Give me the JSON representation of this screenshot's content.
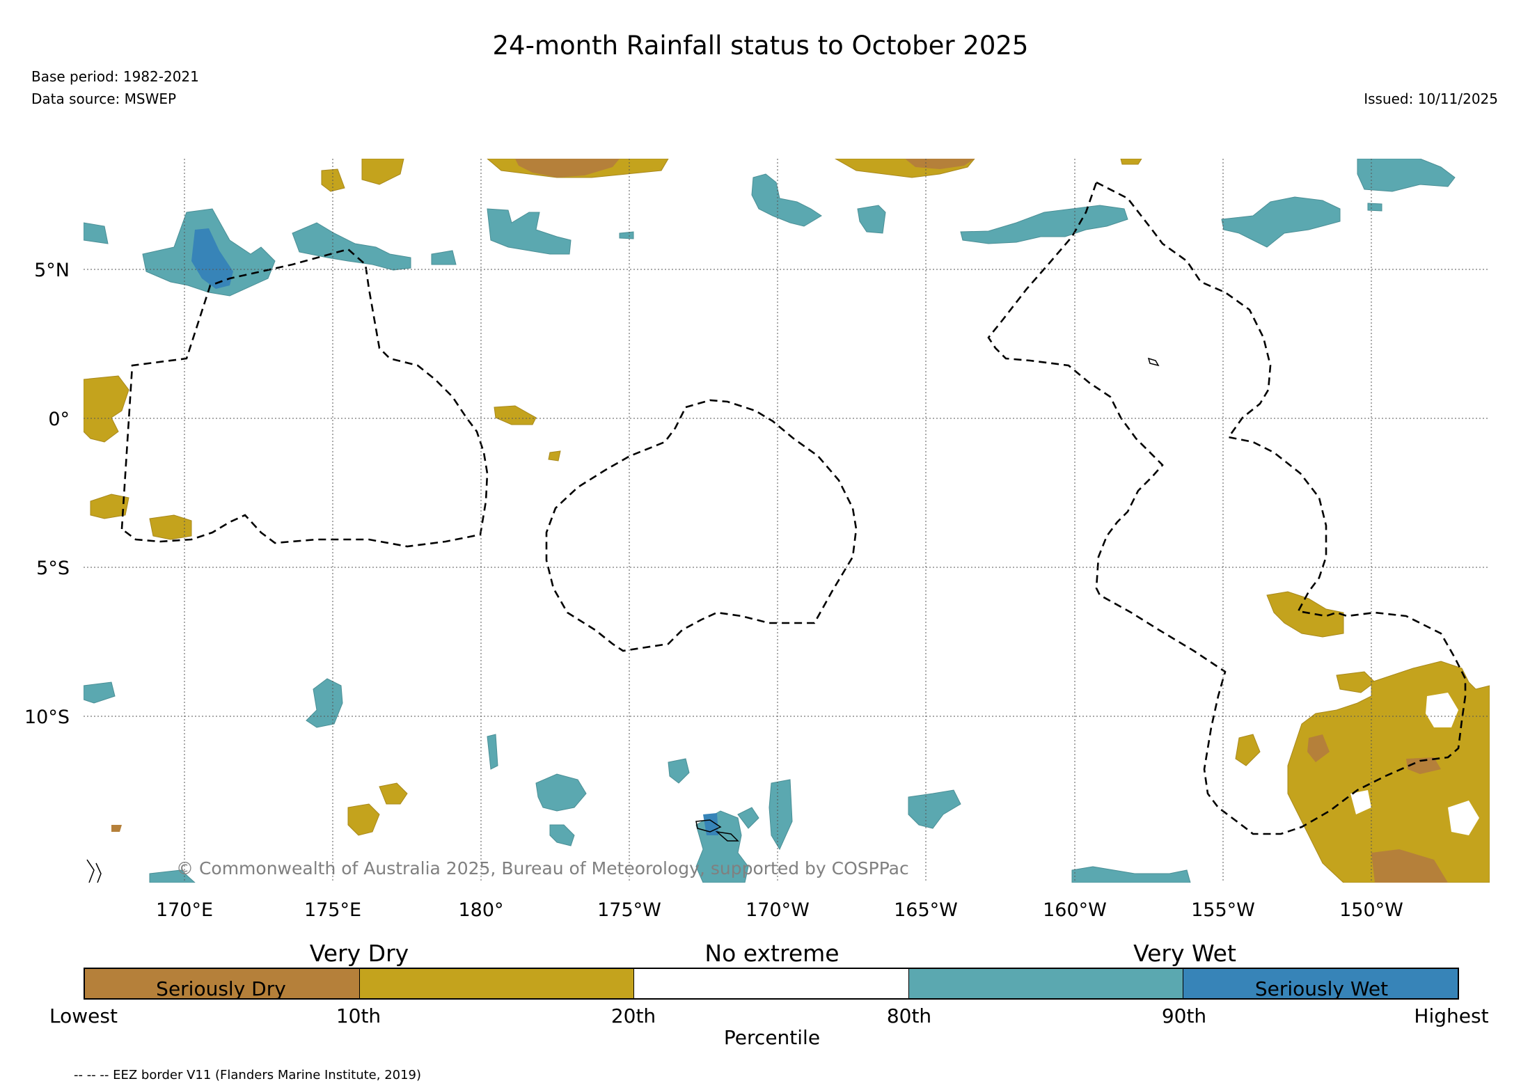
{
  "title": "24-month Rainfall status to October 2025",
  "base_period": "Base period: 1982-2021",
  "data_source": "Data source: MSWEP",
  "issued": "Issued: 10/11/2025",
  "copyright": "© Commonwealth of Australia 2025, Bureau of Meteorology, supported by COSPPac",
  "map": {
    "lon_ticks": [
      "170°E",
      "175°E",
      "180°",
      "175°W",
      "170°W",
      "165°W",
      "160°W",
      "155°W",
      "150°W"
    ],
    "lat_ticks": [
      "5°N",
      "0°",
      "5°S",
      "10°S"
    ],
    "grid": "on",
    "colors": {
      "seriously_dry": "#b5803a",
      "very_dry": "#c4a31d",
      "no_extreme": "#ffffff",
      "very_wet": "#5ba8b0",
      "seriously_wet": "#3784b8"
    }
  },
  "legend": {
    "group_labels": [
      "Very Dry",
      "No extreme",
      "Very Wet"
    ],
    "inner_labels": [
      "Seriously Dry",
      "Seriously Wet"
    ],
    "ticks": [
      "Lowest",
      "10th",
      "20th",
      "80th",
      "90th",
      "Highest"
    ],
    "axis_label": "Percentile",
    "categories": [
      {
        "name": "Seriously Dry",
        "color": "#b5803a"
      },
      {
        "name": "Very Dry",
        "color": "#c4a31d"
      },
      {
        "name": "No extreme",
        "color": "#ffffff"
      },
      {
        "name": "Very Wet",
        "color": "#5ba8b0"
      },
      {
        "name": "Seriously Wet",
        "color": "#3784b8"
      }
    ]
  },
  "footnote": "-- -- -- EEZ border V11 (Flanders Marine Institute, 2019)"
}
